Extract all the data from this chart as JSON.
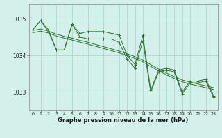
{
  "bg_color": "#d4f0ea",
  "grid_color": "#a8d8cc",
  "line_color": "#2d6e2d",
  "title": "Graphe pression niveau de la mer (hPa)",
  "xlim": [
    -0.5,
    23.5
  ],
  "ylim": [
    1032.5,
    1035.4
  ],
  "yticks": [
    1033,
    1034,
    1035
  ],
  "xticks": [
    0,
    1,
    2,
    3,
    4,
    5,
    6,
    7,
    8,
    9,
    10,
    11,
    12,
    13,
    14,
    15,
    16,
    17,
    18,
    19,
    20,
    21,
    22,
    23
  ],
  "y_main": [
    1034.7,
    1034.95,
    1034.7,
    1034.15,
    1034.15,
    1034.85,
    1034.6,
    1034.65,
    1034.65,
    1034.65,
    1034.6,
    1034.55,
    1034.0,
    1033.75,
    1034.55,
    1033.05,
    1033.6,
    1033.65,
    1033.6,
    1033.0,
    1033.3,
    1033.3,
    1033.35,
    1032.9
  ],
  "y_sec": [
    1034.7,
    1034.95,
    1034.65,
    1034.15,
    1034.15,
    1034.85,
    1034.5,
    1034.45,
    1034.45,
    1034.45,
    1034.45,
    1034.35,
    1033.9,
    1033.65,
    1034.4,
    1033.0,
    1033.55,
    1033.6,
    1033.55,
    1032.95,
    1033.25,
    1033.25,
    1033.3,
    1032.85
  ],
  "y_smooth1": [
    1034.68,
    1034.72,
    1034.66,
    1034.58,
    1034.52,
    1034.47,
    1034.41,
    1034.36,
    1034.3,
    1034.24,
    1034.18,
    1034.12,
    1034.05,
    1033.97,
    1033.87,
    1033.75,
    1033.63,
    1033.52,
    1033.42,
    1033.33,
    1033.27,
    1033.22,
    1033.17,
    1033.12
  ],
  "y_smooth2": [
    1034.62,
    1034.66,
    1034.61,
    1034.53,
    1034.47,
    1034.42,
    1034.36,
    1034.31,
    1034.25,
    1034.19,
    1034.13,
    1034.07,
    1034.0,
    1033.92,
    1033.82,
    1033.7,
    1033.58,
    1033.47,
    1033.37,
    1033.28,
    1033.22,
    1033.17,
    1033.12,
    1033.07
  ]
}
